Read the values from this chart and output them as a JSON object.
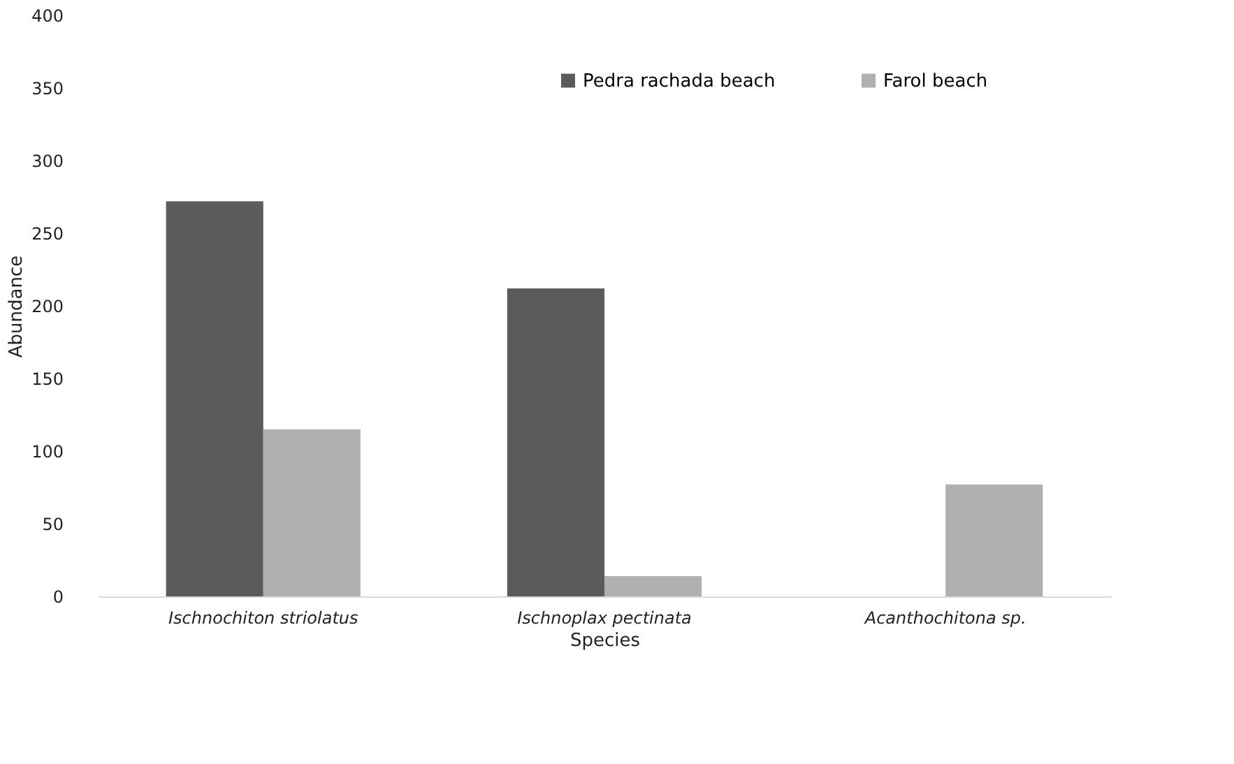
{
  "chart_data": {
    "type": "bar",
    "xlabel": "Species",
    "ylabel": "Abundance",
    "categories": [
      "Ischnochiton striolatus",
      "Ischnoplax pectinata",
      "Acanthochitona sp."
    ],
    "series": [
      {
        "name": "Pedra rachada beach",
        "color": "#5b5b5b",
        "values": [
          272,
          212,
          0
        ]
      },
      {
        "name": "Farol beach",
        "color": "#b0b0b0",
        "values": [
          115,
          14,
          77
        ]
      }
    ],
    "ylim": [
      0,
      400
    ],
    "yticks": [
      0,
      50,
      100,
      150,
      200,
      250,
      300,
      350,
      400
    ],
    "grid": false,
    "legend": "top right"
  }
}
